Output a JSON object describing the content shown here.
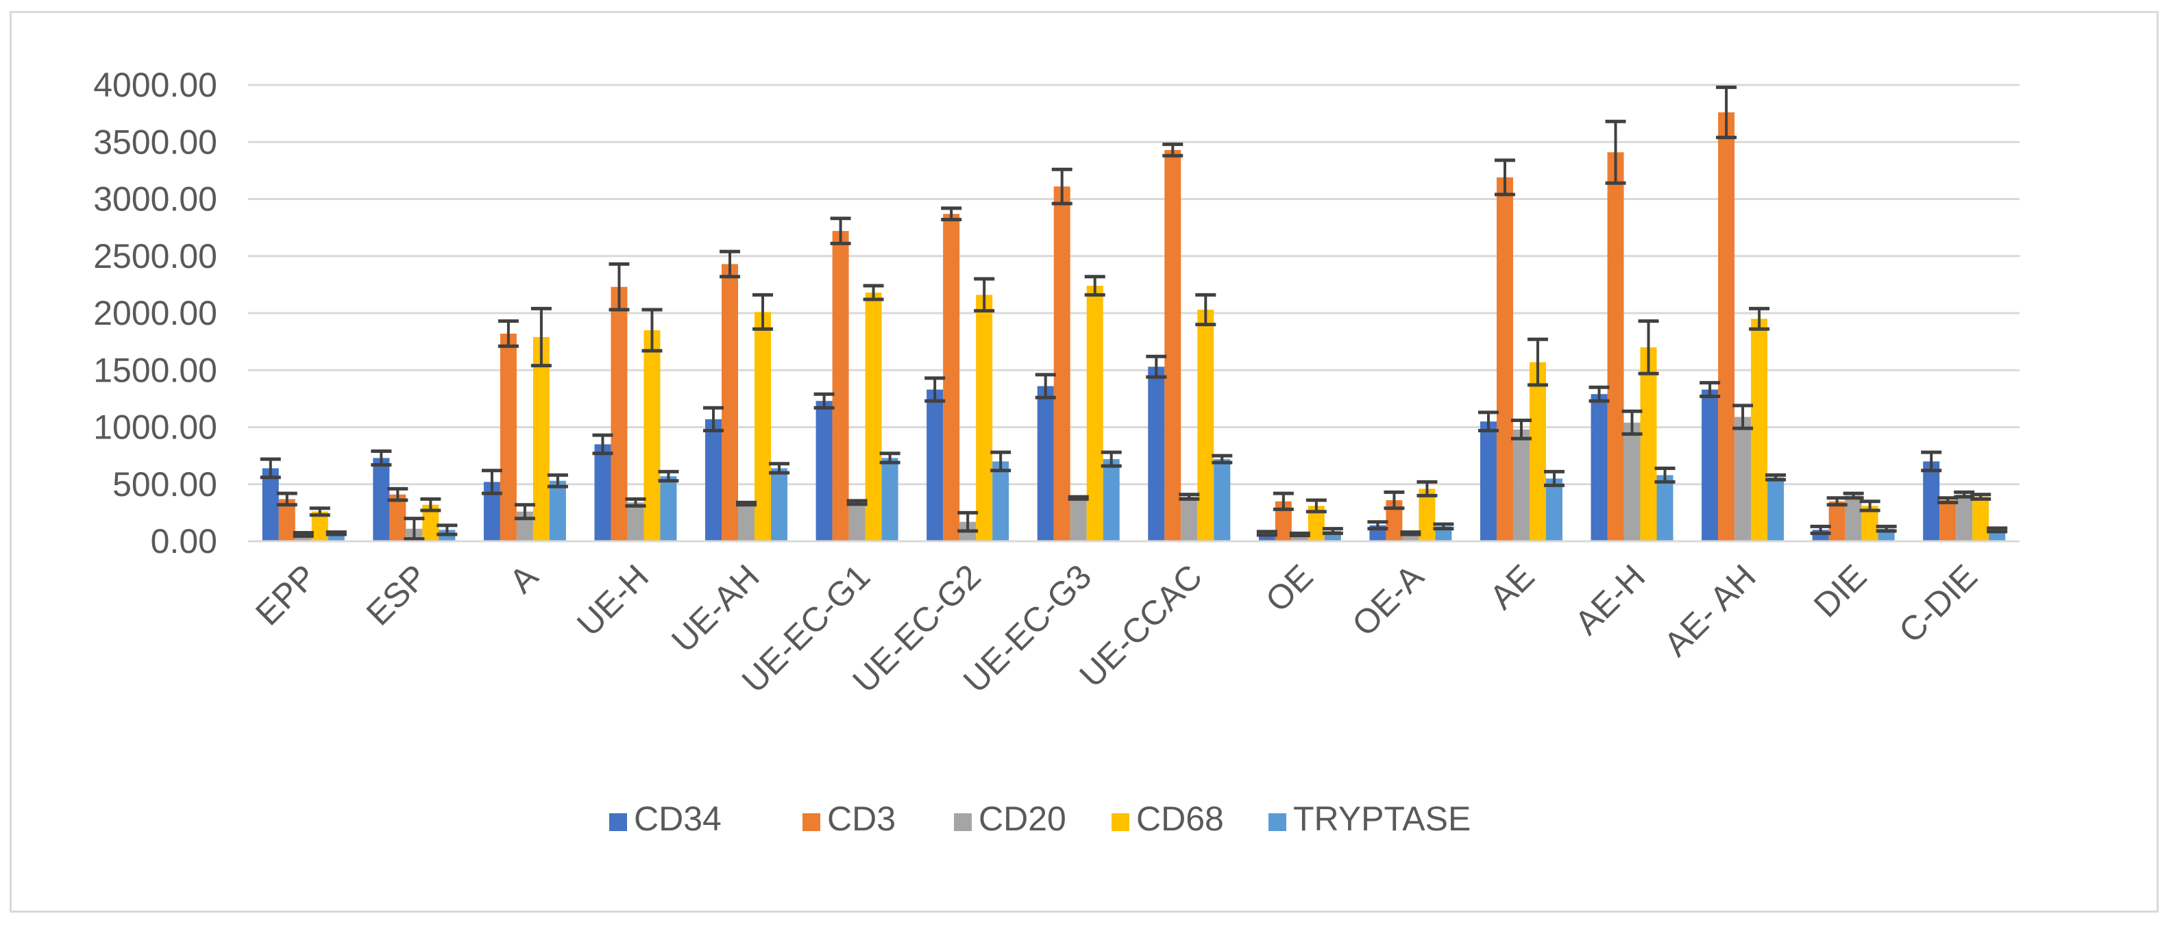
{
  "chart_data": {
    "type": "bar",
    "title": "",
    "xlabel": "",
    "ylabel": "",
    "ylim": [
      0,
      4000
    ],
    "ytick_step": 500,
    "ytick_labels": [
      "0.00",
      "500.00",
      "1000.00",
      "1500.00",
      "2000.00",
      "2500.00",
      "3000.00",
      "3500.00",
      "4000.00"
    ],
    "grid": true,
    "legend_position": "bottom",
    "categories": [
      "EPP",
      "ESP",
      "A",
      "UE-H",
      "UE-AH",
      "UE-EC-G1",
      "UE-EC-G2",
      "UE-EC-G3",
      "UE-CCAC",
      "OE",
      "OE-A",
      "AE",
      "AE-H",
      "AE- AH",
      "DIE",
      "C-DIE"
    ],
    "series": [
      {
        "name": "CD34",
        "color": "#4472c4",
        "values": [
          640,
          730,
          520,
          850,
          1070,
          1230,
          1330,
          1360,
          1530,
          70,
          140,
          1050,
          1290,
          1330,
          100,
          700
        ],
        "errors": [
          80,
          60,
          100,
          80,
          100,
          60,
          100,
          100,
          90,
          15,
          30,
          80,
          60,
          60,
          30,
          80
        ]
      },
      {
        "name": "CD3",
        "color": "#ed7d31",
        "values": [
          370,
          410,
          1820,
          2230,
          2430,
          2720,
          2870,
          3110,
          3430,
          350,
          360,
          3190,
          3410,
          3760,
          350,
          360
        ],
        "errors": [
          50,
          50,
          110,
          200,
          110,
          110,
          50,
          150,
          50,
          70,
          70,
          150,
          270,
          220,
          30,
          20
        ]
      },
      {
        "name": "CD20",
        "color": "#a5a5a5",
        "values": [
          60,
          110,
          260,
          340,
          330,
          340,
          170,
          380,
          390,
          60,
          70,
          980,
          1040,
          1090,
          400,
          410
        ],
        "errors": [
          15,
          90,
          60,
          30,
          10,
          15,
          80,
          10,
          20,
          10,
          10,
          80,
          100,
          100,
          20,
          20
        ]
      },
      {
        "name": "CD68",
        "color": "#ffc000",
        "values": [
          260,
          320,
          1790,
          1850,
          2010,
          2180,
          2160,
          2240,
          2030,
          310,
          460,
          1570,
          1700,
          1950,
          310,
          390
        ],
        "errors": [
          30,
          50,
          250,
          180,
          150,
          60,
          140,
          80,
          130,
          50,
          60,
          200,
          230,
          90,
          40,
          20
        ]
      },
      {
        "name": "TRYPTASE",
        "color": "#5b9bd5",
        "values": [
          70,
          100,
          530,
          570,
          640,
          730,
          700,
          720,
          720,
          90,
          130,
          550,
          580,
          560,
          110,
          100
        ],
        "errors": [
          10,
          40,
          50,
          40,
          40,
          40,
          80,
          60,
          30,
          20,
          20,
          60,
          60,
          20,
          20,
          15
        ]
      }
    ]
  }
}
